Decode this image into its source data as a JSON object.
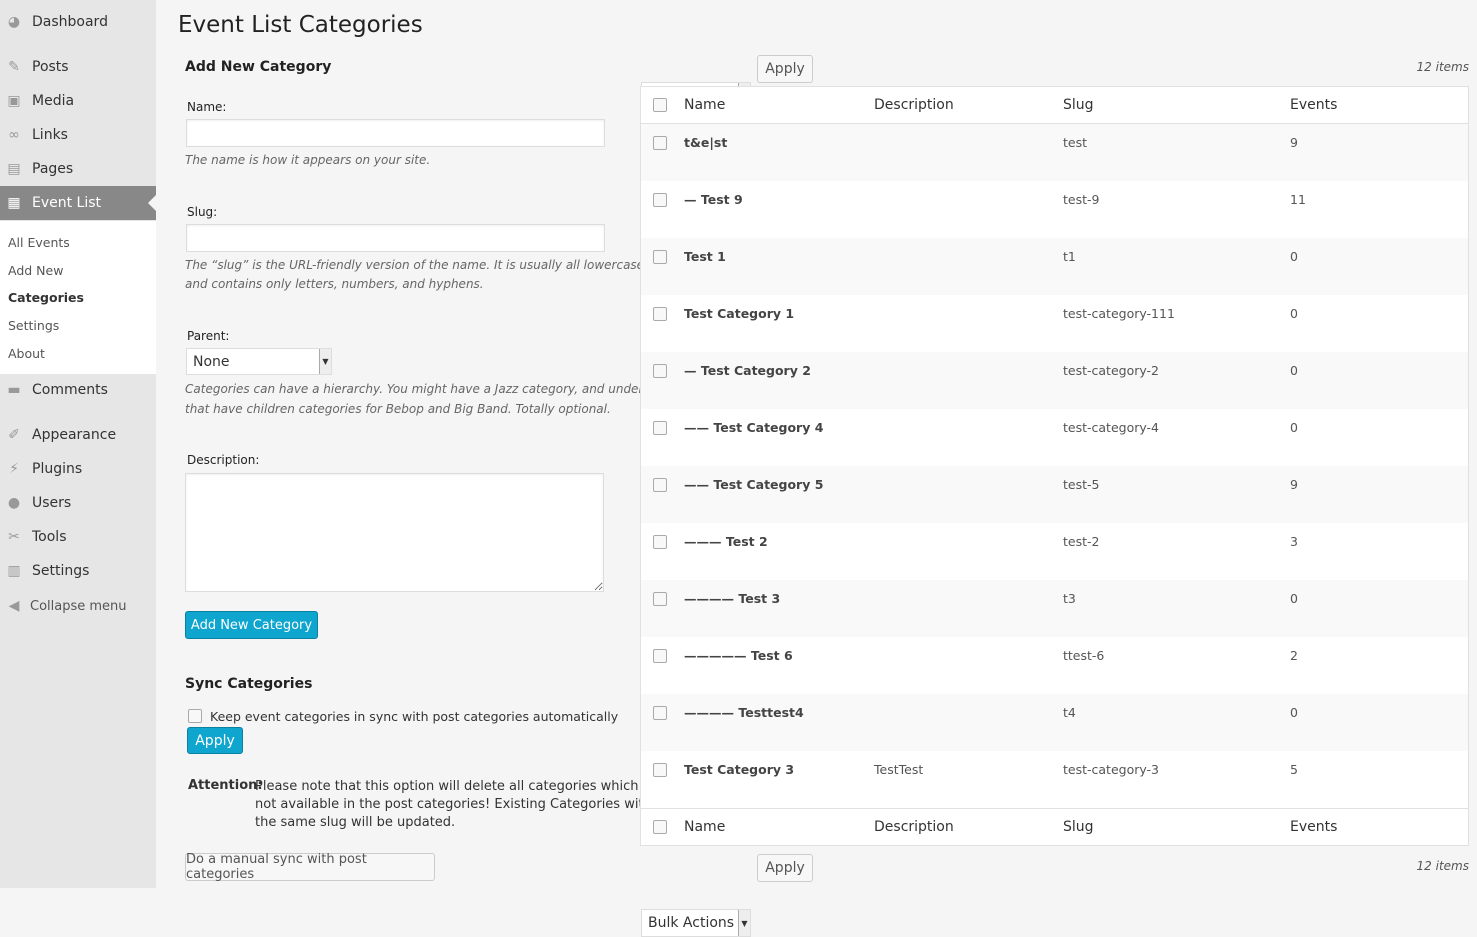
{
  "sidebar": {
    "items": [
      {
        "label": "Dashboard",
        "icon": "dashboard-icon"
      },
      {
        "label": "Posts",
        "icon": "pin-icon"
      },
      {
        "label": "Media",
        "icon": "media-icon"
      },
      {
        "label": "Links",
        "icon": "link-icon"
      },
      {
        "label": "Pages",
        "icon": "pages-icon"
      },
      {
        "label": "Event List",
        "icon": "calendar-icon"
      },
      {
        "label": "Comments",
        "icon": "comment-icon"
      },
      {
        "label": "Appearance",
        "icon": "brush-icon"
      },
      {
        "label": "Plugins",
        "icon": "plug-icon"
      },
      {
        "label": "Users",
        "icon": "user-icon"
      },
      {
        "label": "Tools",
        "icon": "wrench-icon"
      },
      {
        "label": "Settings",
        "icon": "settings-icon"
      }
    ],
    "submenu": [
      "All Events",
      "Add New",
      "Categories",
      "Settings",
      "About"
    ],
    "collapse": "Collapse menu"
  },
  "page_title": "Event List Categories",
  "form": {
    "heading": "Add New Category",
    "name_label": "Name:",
    "name_value": "",
    "name_hint": "The name is how it appears on your site.",
    "slug_label": "Slug:",
    "slug_value": "",
    "slug_hint1": "The “slug” is the URL-friendly version of the name. It is usually all lowercase",
    "slug_hint2": "and contains only letters, numbers, and hyphens.",
    "parent_label": "Parent:",
    "parent_value": "None",
    "parent_hint1": "Categories can have a hierarchy. You might have a Jazz category, and under",
    "parent_hint2": "that have children categories for Bebop and Big Band. Totally optional.",
    "description_label": "Description:",
    "submit": "Add New Category"
  },
  "sync": {
    "heading": "Sync Categories",
    "checkbox_label": "Keep event categories in sync with post categories automatically",
    "apply": "Apply",
    "attention_label": "Attention:",
    "attention_lines": [
      "Please note that this option will delete all categories which are",
      "not available in the post categories! Existing Categories with",
      "the same slug will be updated."
    ],
    "manual": "Do a manual sync with post categories"
  },
  "table": {
    "bulk_actions": "Bulk Actions",
    "apply": "Apply",
    "count": "12 items",
    "columns": [
      "Name",
      "Description",
      "Slug",
      "Events"
    ],
    "rows": [
      {
        "name": "t&e|st",
        "description": "",
        "slug": "test",
        "events": "9"
      },
      {
        "name": "— Test 9",
        "description": "",
        "slug": "test-9",
        "events": "11"
      },
      {
        "name": "Test 1",
        "description": "",
        "slug": "t1",
        "events": "0"
      },
      {
        "name": "Test Category 1",
        "description": "",
        "slug": "test-category-111",
        "events": "0"
      },
      {
        "name": "— Test Category 2",
        "description": "",
        "slug": "test-category-2",
        "events": "0"
      },
      {
        "name": "—— Test Category 4",
        "description": "",
        "slug": "test-category-4",
        "events": "0"
      },
      {
        "name": "—— Test Category 5",
        "description": "",
        "slug": "test-5",
        "events": "9"
      },
      {
        "name": "——— Test 2",
        "description": "",
        "slug": "test-2",
        "events": "3"
      },
      {
        "name": "———— Test 3",
        "description": "",
        "slug": "t3",
        "events": "0"
      },
      {
        "name": "————— Test 6",
        "description": "",
        "slug": "ttest-6",
        "events": "2"
      },
      {
        "name": "———— Testtest4",
        "description": "",
        "slug": "t4",
        "events": "0"
      },
      {
        "name": "Test Category 3",
        "description": "TestTest",
        "slug": "test-category-3",
        "events": "5"
      }
    ]
  }
}
